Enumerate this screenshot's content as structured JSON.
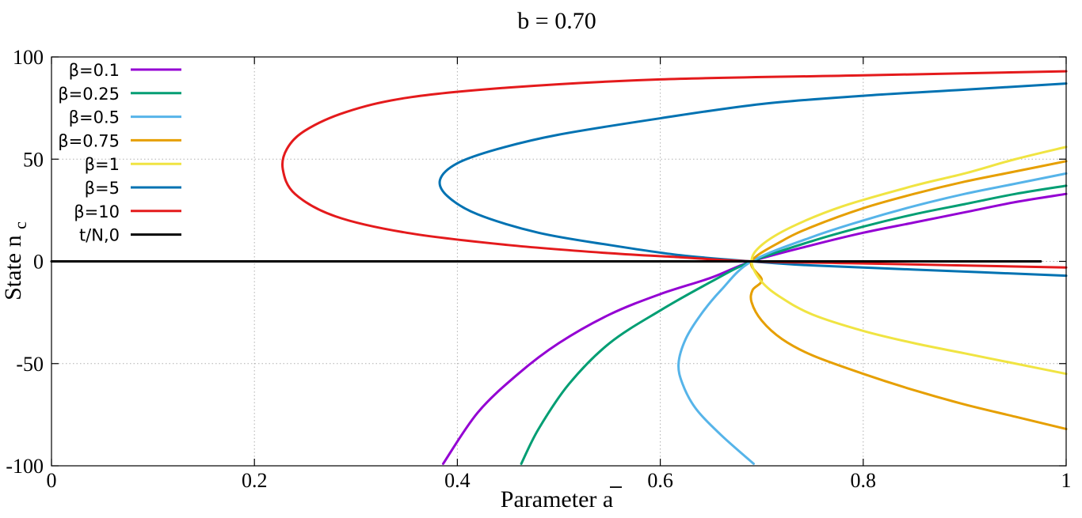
{
  "chart_data": {
    "type": "line",
    "title": "b = 0.70",
    "xlabel": "Parameter",
    "xlabel_symbol": "a",
    "ylabel": "State n",
    "ylabel_subscript": "c",
    "xlim": [
      0,
      1
    ],
    "ylim": [
      -100,
      100
    ],
    "x_ticks": [
      0,
      0.2,
      0.4,
      0.6,
      0.8,
      1
    ],
    "x_tick_labels": [
      "0",
      "0.2",
      "0.4",
      "0.6",
      "0.8",
      "1"
    ],
    "y_ticks": [
      100,
      50,
      0,
      -50,
      -100
    ],
    "y_tick_labels": [
      "100",
      "50",
      "0",
      "-50",
      "-100"
    ],
    "grid": true,
    "legend_position": "top-left",
    "series": [
      {
        "name": "β=0.1",
        "color": "#9400d3",
        "points": [
          [
            0.386,
            -99
          ],
          [
            0.42,
            -74
          ],
          [
            0.46,
            -55
          ],
          [
            0.5,
            -40
          ],
          [
            0.55,
            -26
          ],
          [
            0.6,
            -16
          ],
          [
            0.65,
            -8
          ],
          [
            0.69,
            0
          ],
          [
            0.75,
            8
          ],
          [
            0.8,
            14
          ],
          [
            0.85,
            19
          ],
          [
            0.9,
            24
          ],
          [
            0.95,
            29
          ],
          [
            1.0,
            33
          ]
        ]
      },
      {
        "name": "β=0.25",
        "color": "#009e73",
        "points": [
          [
            0.463,
            -99
          ],
          [
            0.48,
            -82
          ],
          [
            0.51,
            -60
          ],
          [
            0.55,
            -40
          ],
          [
            0.6,
            -24
          ],
          [
            0.65,
            -10
          ],
          [
            0.69,
            0
          ],
          [
            0.75,
            10
          ],
          [
            0.8,
            17
          ],
          [
            0.85,
            23
          ],
          [
            0.9,
            28
          ],
          [
            0.95,
            33
          ],
          [
            1.0,
            37
          ]
        ]
      },
      {
        "name": "β=0.5",
        "color": "#56b4e9",
        "points": [
          [
            0.692,
            -99
          ],
          [
            0.66,
            -85
          ],
          [
            0.635,
            -72
          ],
          [
            0.622,
            -60
          ],
          [
            0.618,
            -50
          ],
          [
            0.625,
            -38
          ],
          [
            0.64,
            -26
          ],
          [
            0.66,
            -14
          ],
          [
            0.69,
            0
          ],
          [
            0.75,
            12
          ],
          [
            0.8,
            20
          ],
          [
            0.85,
            27
          ],
          [
            0.9,
            33
          ],
          [
            0.95,
            38
          ],
          [
            1.0,
            43
          ]
        ]
      },
      {
        "name": "β=0.75",
        "color": "#e69f00",
        "points": [
          [
            1.0,
            -82
          ],
          [
            0.95,
            -76
          ],
          [
            0.9,
            -70
          ],
          [
            0.85,
            -63
          ],
          [
            0.8,
            -55
          ],
          [
            0.75,
            -46
          ],
          [
            0.72,
            -38
          ],
          [
            0.7,
            -29
          ],
          [
            0.69,
            -20
          ],
          [
            0.691,
            -14
          ],
          [
            0.7,
            -9
          ],
          [
            0.69,
            0
          ],
          [
            0.72,
            10
          ],
          [
            0.75,
            17
          ],
          [
            0.8,
            26
          ],
          [
            0.85,
            33
          ],
          [
            0.9,
            39
          ],
          [
            0.95,
            44
          ],
          [
            1.0,
            49
          ]
        ]
      },
      {
        "name": "β=1",
        "color": "#f0e442",
        "points": [
          [
            1.0,
            -55
          ],
          [
            0.95,
            -50
          ],
          [
            0.9,
            -45
          ],
          [
            0.85,
            -40
          ],
          [
            0.8,
            -34
          ],
          [
            0.75,
            -26
          ],
          [
            0.72,
            -18
          ],
          [
            0.7,
            -10
          ],
          [
            0.69,
            0
          ],
          [
            0.7,
            8
          ],
          [
            0.73,
            17
          ],
          [
            0.78,
            27
          ],
          [
            0.85,
            37
          ],
          [
            0.9,
            43
          ],
          [
            0.95,
            50
          ],
          [
            1.0,
            56
          ]
        ]
      },
      {
        "name": "β=5",
        "color": "#0072b2",
        "points": [
          [
            1.0,
            87
          ],
          [
            0.9,
            84
          ],
          [
            0.8,
            81
          ],
          [
            0.7,
            77
          ],
          [
            0.6,
            70
          ],
          [
            0.5,
            62
          ],
          [
            0.44,
            55
          ],
          [
            0.4,
            48
          ],
          [
            0.383,
            40
          ],
          [
            0.39,
            32
          ],
          [
            0.42,
            23
          ],
          [
            0.48,
            14
          ],
          [
            0.55,
            8
          ],
          [
            0.62,
            3
          ],
          [
            0.69,
            0
          ],
          [
            0.75,
            -2
          ],
          [
            0.85,
            -4
          ],
          [
            1.0,
            -7
          ]
        ]
      },
      {
        "name": "β=10",
        "color": "#e41a1c",
        "points": [
          [
            1.0,
            93
          ],
          [
            0.8,
            91
          ],
          [
            0.6,
            89
          ],
          [
            0.45,
            85
          ],
          [
            0.35,
            80
          ],
          [
            0.29,
            73
          ],
          [
            0.25,
            64
          ],
          [
            0.232,
            55
          ],
          [
            0.228,
            45
          ],
          [
            0.24,
            33
          ],
          [
            0.28,
            22
          ],
          [
            0.35,
            14
          ],
          [
            0.45,
            8
          ],
          [
            0.55,
            4
          ],
          [
            0.62,
            2
          ],
          [
            0.69,
            0
          ],
          [
            0.8,
            -1
          ],
          [
            1.0,
            -3
          ]
        ]
      },
      {
        "name": "t/N,0",
        "color": "#000000",
        "points": [
          [
            0,
            0
          ],
          [
            0.975,
            0
          ]
        ]
      }
    ]
  }
}
